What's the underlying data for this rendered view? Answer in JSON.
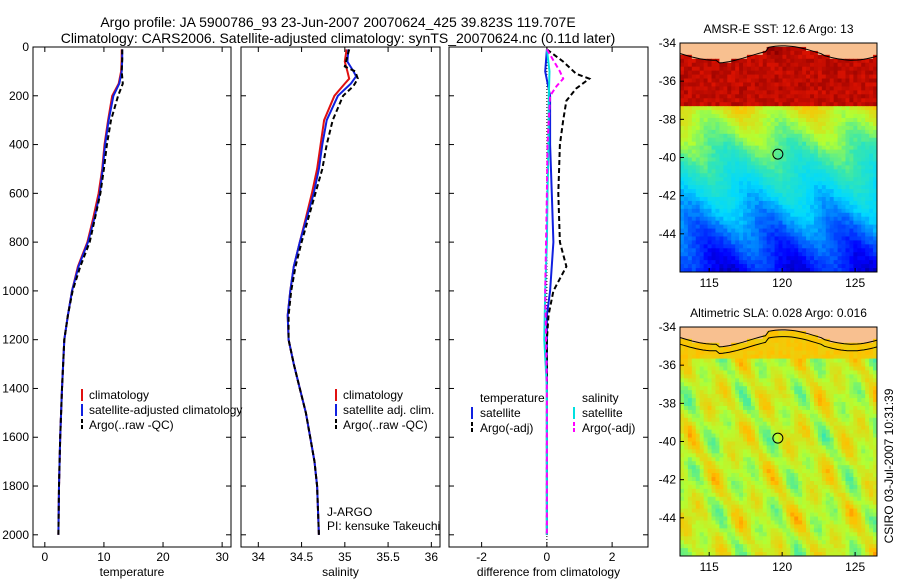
{
  "header": {
    "title_line1": "Argo profile: JA 5900786_93 23-Jun-2007 20070624_425 39.823S 119.707E",
    "title_line2": "Climatology: CARS2006. Satellite-adjusted climatology: synTS_20070624.nc (0.11d later)"
  },
  "footer": {
    "stamp": "CSIRO 03-Jul-2007 10:31:39"
  },
  "colors": {
    "climatology": "#e01010",
    "satellite": "#1020e0",
    "argo": "#000000",
    "satellite_salinity": "#00e0e0",
    "argo_adj_salinity": "#ff00ff"
  },
  "chart_data": [
    {
      "type": "line",
      "xlabel": "temperature",
      "xlim": [
        -2,
        31.5
      ],
      "ylim": [
        2050,
        0
      ],
      "xticks": [
        0,
        10,
        20,
        30
      ],
      "yticks": [
        0,
        200,
        400,
        600,
        800,
        1000,
        1200,
        1400,
        1600,
        1800,
        2000
      ],
      "legend": [
        "climatology",
        "satellite-adjusted climatology",
        "Argo(..raw -QC)"
      ],
      "series": [
        {
          "name": "climatology",
          "color": "#e01010",
          "dash": "",
          "points": [
            [
              13,
              10
            ],
            [
              13,
              50
            ],
            [
              12.9,
              100
            ],
            [
              12.5,
              150
            ],
            [
              11.4,
              200
            ],
            [
              10.7,
              300
            ],
            [
              10.1,
              400
            ],
            [
              9.7,
              500
            ],
            [
              9.1,
              600
            ],
            [
              8.2,
              700
            ],
            [
              7.2,
              800
            ],
            [
              5.6,
              900
            ],
            [
              4.6,
              1000
            ],
            [
              3.9,
              1100
            ],
            [
              3.3,
              1200
            ],
            [
              2.9,
              1400
            ],
            [
              2.6,
              1600
            ],
            [
              2.4,
              1800
            ],
            [
              2.3,
              2000
            ]
          ]
        },
        {
          "name": "satellite-adjusted climatology",
          "color": "#1020e0",
          "dash": "",
          "points": [
            [
              13.1,
              10
            ],
            [
              13.1,
              50
            ],
            [
              13,
              100
            ],
            [
              12.6,
              150
            ],
            [
              11.6,
              200
            ],
            [
              10.8,
              300
            ],
            [
              10.2,
              400
            ],
            [
              9.8,
              500
            ],
            [
              9.3,
              600
            ],
            [
              8.4,
              700
            ],
            [
              7.3,
              800
            ],
            [
              5.7,
              900
            ],
            [
              4.6,
              1000
            ],
            [
              3.9,
              1100
            ],
            [
              3.3,
              1200
            ],
            [
              2.9,
              1400
            ],
            [
              2.6,
              1600
            ],
            [
              2.4,
              1800
            ],
            [
              2.3,
              2000
            ]
          ]
        },
        {
          "name": "Argo(..raw -QC)",
          "color": "#000000",
          "dash": "5,3",
          "points": [
            [
              13.1,
              10
            ],
            [
              13.1,
              50
            ],
            [
              13,
              100
            ],
            [
              13.2,
              150
            ],
            [
              12.4,
              200
            ],
            [
              11.2,
              300
            ],
            [
              10.5,
              400
            ],
            [
              10,
              500
            ],
            [
              9.4,
              600
            ],
            [
              8.5,
              700
            ],
            [
              7.6,
              800
            ],
            [
              6,
              900
            ],
            [
              4.7,
              1000
            ],
            [
              3.9,
              1100
            ],
            [
              3.3,
              1200
            ],
            [
              2.9,
              1400
            ],
            [
              2.6,
              1600
            ],
            [
              2.4,
              1800
            ],
            [
              2.3,
              2000
            ]
          ]
        }
      ]
    },
    {
      "type": "line",
      "xlabel": "salinity",
      "xlim": [
        33.8,
        36.1
      ],
      "ylim": [
        2050,
        0
      ],
      "xticks": [
        34,
        34.5,
        35,
        35.5,
        36
      ],
      "legend": [
        "climatology",
        "satellite adj. clim.",
        "Argo(..raw -QC)"
      ],
      "annotations": [
        "J-ARGO",
        "PI: kensuke Takeuchi"
      ],
      "series": [
        {
          "name": "climatology",
          "color": "#e01010",
          "dash": "",
          "points": [
            [
              35.02,
              10
            ],
            [
              35,
              60
            ],
            [
              35.03,
              100
            ],
            [
              35.05,
              130
            ],
            [
              35.0,
              150
            ],
            [
              34.88,
              200
            ],
            [
              34.76,
              300
            ],
            [
              34.72,
              400
            ],
            [
              34.68,
              500
            ],
            [
              34.62,
              600
            ],
            [
              34.55,
              700
            ],
            [
              34.48,
              800
            ],
            [
              34.41,
              900
            ],
            [
              34.37,
              1000
            ],
            [
              34.34,
              1100
            ],
            [
              34.35,
              1200
            ],
            [
              34.41,
              1300
            ],
            [
              34.48,
              1400
            ],
            [
              34.55,
              1500
            ],
            [
              34.6,
              1600
            ],
            [
              34.65,
              1700
            ],
            [
              34.68,
              1800
            ],
            [
              34.7,
              2000
            ]
          ]
        },
        {
          "name": "satellite adj. clim.",
          "color": "#1020e0",
          "dash": "",
          "points": [
            [
              35.04,
              10
            ],
            [
              35.03,
              60
            ],
            [
              35.1,
              100
            ],
            [
              35.13,
              120
            ],
            [
              35.07,
              150
            ],
            [
              34.92,
              200
            ],
            [
              34.79,
              300
            ],
            [
              34.74,
              400
            ],
            [
              34.7,
              500
            ],
            [
              34.64,
              600
            ],
            [
              34.56,
              700
            ],
            [
              34.48,
              800
            ],
            [
              34.41,
              900
            ],
            [
              34.37,
              1000
            ],
            [
              34.34,
              1100
            ],
            [
              34.35,
              1200
            ],
            [
              34.41,
              1300
            ],
            [
              34.48,
              1400
            ],
            [
              34.55,
              1500
            ],
            [
              34.6,
              1600
            ],
            [
              34.65,
              1700
            ],
            [
              34.68,
              1800
            ],
            [
              34.7,
              2000
            ]
          ]
        },
        {
          "name": "Argo(..raw -QC)",
          "color": "#000000",
          "dash": "5,3",
          "points": [
            [
              35.05,
              10
            ],
            [
              35.02,
              50
            ],
            [
              35.0,
              80
            ],
            [
              35.12,
              100
            ],
            [
              35.15,
              130
            ],
            [
              35.1,
              160
            ],
            [
              34.98,
              200
            ],
            [
              34.86,
              300
            ],
            [
              34.79,
              400
            ],
            [
              34.74,
              500
            ],
            [
              34.66,
              600
            ],
            [
              34.58,
              700
            ],
            [
              34.5,
              800
            ],
            [
              34.43,
              900
            ],
            [
              34.38,
              1000
            ],
            [
              34.35,
              1100
            ],
            [
              34.35,
              1200
            ],
            [
              34.41,
              1300
            ],
            [
              34.48,
              1400
            ],
            [
              34.55,
              1500
            ],
            [
              34.6,
              1600
            ],
            [
              34.65,
              1700
            ],
            [
              34.68,
              1800
            ],
            [
              34.7,
              2000
            ]
          ]
        }
      ]
    },
    {
      "type": "line",
      "xlabel": "difference from climatology",
      "xlim": [
        -3,
        3.1
      ],
      "ylim": [
        2050,
        0
      ],
      "xticks": [
        -2,
        0,
        2
      ],
      "legend": [
        "temperature",
        "satellite",
        "Argo(-adj)",
        "salinity",
        "satellite",
        "Argo(-adj)"
      ],
      "series": [
        {
          "name": "satellite",
          "color": "#1020e0",
          "dash": "",
          "points": [
            [
              0,
              10
            ],
            [
              -0.05,
              100
            ],
            [
              0.1,
              200
            ],
            [
              0.1,
              400
            ],
            [
              0.15,
              600
            ],
            [
              0.2,
              800
            ],
            [
              0.1,
              1000
            ],
            [
              0,
              1100
            ],
            [
              0,
              2000
            ]
          ]
        },
        {
          "name": "Argo(-adj)",
          "color": "#000000",
          "dash": "5,3",
          "points": [
            [
              0,
              10
            ],
            [
              0.5,
              60
            ],
            [
              0.9,
              110
            ],
            [
              1.3,
              130
            ],
            [
              0.9,
              170
            ],
            [
              0.6,
              220
            ],
            [
              0.5,
              300
            ],
            [
              0.4,
              400
            ],
            [
              0.35,
              600
            ],
            [
              0.4,
              800
            ],
            [
              0.6,
              900
            ],
            [
              0.4,
              950
            ],
            [
              0.2,
              1000
            ],
            [
              0.05,
              1100
            ],
            [
              0,
              1200
            ],
            [
              0,
              2000
            ]
          ]
        },
        {
          "name": "satellite",
          "color": "#00e0e0",
          "dash": "",
          "points": [
            [
              0,
              10
            ],
            [
              0.08,
              100
            ],
            [
              0.06,
              200
            ],
            [
              0.05,
              400
            ],
            [
              0.02,
              600
            ],
            [
              0,
              800
            ],
            [
              -0.05,
              1000
            ],
            [
              -0.08,
              1200
            ],
            [
              0,
              1400
            ],
            [
              0,
              2000
            ]
          ]
        },
        {
          "name": "Argo(-adj)",
          "color": "#ff00ff",
          "dash": "5,3",
          "points": [
            [
              0,
              10
            ],
            [
              0.4,
              100
            ],
            [
              0.5,
              130
            ],
            [
              0.3,
              160
            ],
            [
              0.1,
              200
            ],
            [
              0.02,
              400
            ],
            [
              0,
              600
            ],
            [
              -0.05,
              1000
            ],
            [
              0,
              1400
            ],
            [
              0,
              2000
            ]
          ]
        }
      ]
    },
    {
      "type": "heatmap",
      "title": "AMSR-E SST: 12.6 Argo: 13",
      "xlim": [
        113,
        126.5
      ],
      "ylim": [
        -46,
        -34
      ],
      "xticks": [
        115,
        120,
        125
      ],
      "yticks": [
        -34,
        -36,
        -38,
        -40,
        -42,
        -44
      ],
      "marker": [
        119.707,
        -39.823
      ]
    },
    {
      "type": "heatmap",
      "title": "Altimetric SLA: 0.028 Argo: 0.016",
      "xlim": [
        113,
        126.5
      ],
      "ylim": [
        -46,
        -34
      ],
      "xticks": [
        115,
        120,
        125
      ],
      "yticks": [
        -34,
        -36,
        -38,
        -40,
        -42,
        -44
      ],
      "marker": [
        119.707,
        -39.823
      ]
    }
  ]
}
